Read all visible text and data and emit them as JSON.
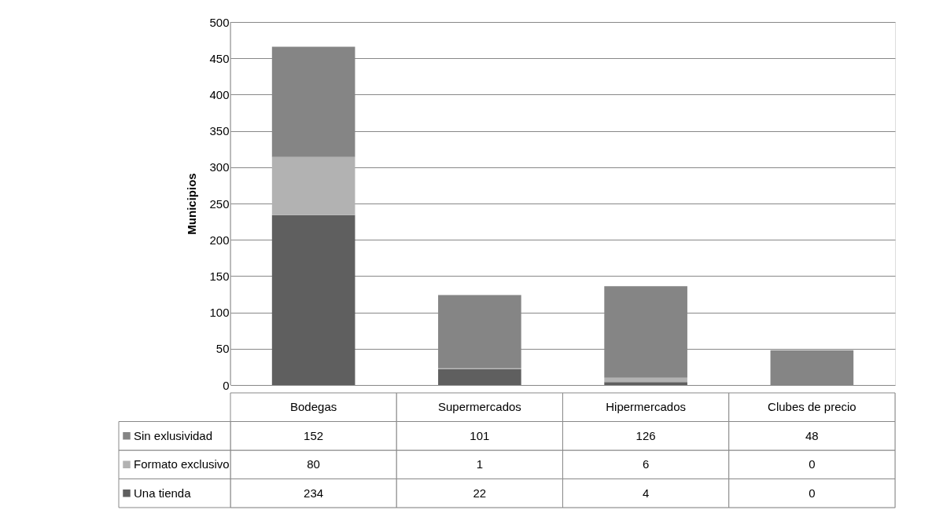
{
  "chart_data": {
    "type": "bar",
    "ylabel": "Municipios",
    "categories": [
      "Bodegas",
      "Supermercados",
      "Hipermercados",
      "Clubes de precio"
    ],
    "series": [
      {
        "name": "Una tienda",
        "color": "#5f5f5f",
        "values": [
          234,
          22,
          4,
          0
        ]
      },
      {
        "name": "Formato exclusivo",
        "color": "#b2b2b2",
        "values": [
          80,
          1,
          6,
          0
        ]
      },
      {
        "name": "Sin exlusividad",
        "color": "#858585",
        "values": [
          152,
          101,
          126,
          48
        ]
      }
    ],
    "stacked": true,
    "ylim": [
      0,
      500
    ],
    "yticks": [
      0,
      50,
      100,
      150,
      200,
      250,
      300,
      350,
      400,
      450,
      500
    ],
    "grid": "y",
    "data_labels": true,
    "legend": "bottom left"
  }
}
